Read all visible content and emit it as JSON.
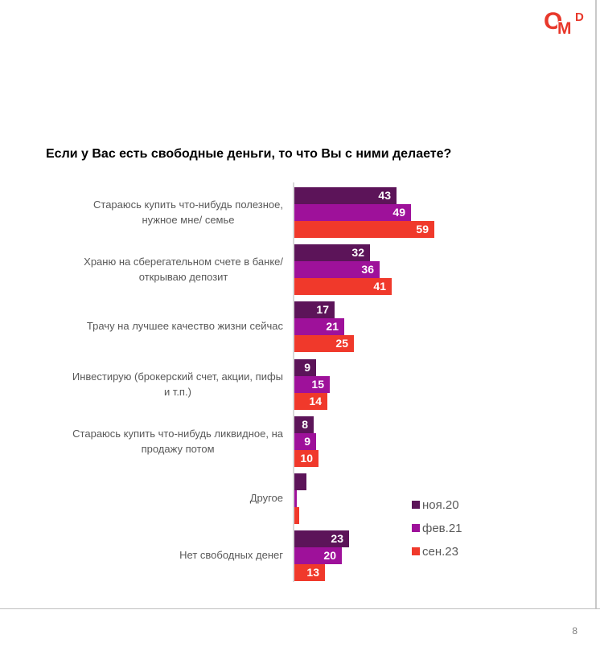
{
  "title": "Если у Вас есть свободные деньги, то что Вы с ними делаете?",
  "logo": {
    "name": "OMD",
    "letters": [
      "O",
      "M",
      "D"
    ],
    "color": "#e8382b"
  },
  "page_number": "8",
  "chart_data": {
    "type": "bar",
    "orientation": "horizontal",
    "value_unit": "percent",
    "value_axis": {
      "visible": false,
      "xlim": [
        0,
        62
      ]
    },
    "grid": false,
    "legend_position": "bottom-right",
    "series": [
      {
        "name": "ноя.20",
        "color": "#5c1459"
      },
      {
        "name": "фев.21",
        "color": "#9e119a"
      },
      {
        "name": "сен.23",
        "color": "#f0392b"
      }
    ],
    "groups": [
      {
        "label_lines": [
          "Стараюсь купить что-нибудь полезное,",
          "нужное мне/ семье"
        ],
        "values": [
          43,
          49,
          59
        ],
        "show_value_labels": true
      },
      {
        "label_lines": [
          "Храню на сберегательном счете в банке/",
          "открываю депозит"
        ],
        "values": [
          32,
          36,
          41
        ],
        "show_value_labels": true
      },
      {
        "label_lines": [
          "Трачу на лучшее качество жизни сейчас"
        ],
        "values": [
          17,
          21,
          25
        ],
        "show_value_labels": true
      },
      {
        "label_lines": [
          "Инвестирую (брокерский счет, акции, пифы",
          "и т.п.)"
        ],
        "values": [
          9,
          15,
          14
        ],
        "show_value_labels": true
      },
      {
        "label_lines": [
          "Стараюсь купить что-нибудь ликвидное, на",
          "продажу потом"
        ],
        "values": [
          8,
          9,
          10
        ],
        "show_value_labels": true
      },
      {
        "label_lines": [
          "Другое"
        ],
        "values": [
          5,
          1,
          2
        ],
        "show_value_labels": false
      },
      {
        "label_lines": [
          "Нет свободных денег"
        ],
        "values": [
          23,
          20,
          13
        ],
        "show_value_labels": true
      }
    ]
  }
}
